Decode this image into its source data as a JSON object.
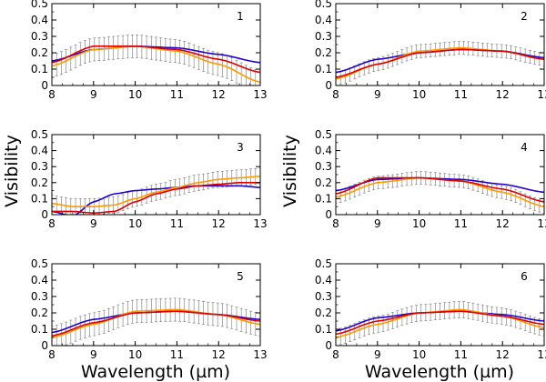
{
  "chart_data": [
    {
      "type": "line",
      "panel_label": "1",
      "x": [
        8,
        9,
        10,
        11,
        12,
        13
      ],
      "xlim": [
        8,
        13
      ],
      "ylim": [
        0,
        0.5
      ],
      "xticks": [
        8,
        9,
        10,
        11,
        12,
        13
      ],
      "yticks": [
        0,
        0.1,
        0.2,
        0.3,
        0.4,
        0.5
      ],
      "series": [
        {
          "name": "model-blue",
          "color": "#2200cc",
          "values": [
            0.15,
            0.22,
            0.24,
            0.23,
            0.19,
            0.14
          ]
        },
        {
          "name": "model-orange",
          "color": "#ff9900",
          "values": [
            0.12,
            0.22,
            0.24,
            0.21,
            0.13,
            0.02
          ]
        },
        {
          "name": "model-red",
          "color": "#dd0000",
          "values": [
            0.14,
            0.24,
            0.24,
            0.22,
            0.16,
            0.08
          ]
        }
      ],
      "errorbar": {
        "series": "model-orange",
        "halfwidth": 0.07
      }
    },
    {
      "type": "line",
      "panel_label": "2",
      "x": [
        8,
        9,
        10,
        11,
        12,
        13
      ],
      "xlim": [
        8,
        13
      ],
      "ylim": [
        0,
        0.5
      ],
      "xticks": [
        8,
        9,
        10,
        11,
        12,
        13
      ],
      "yticks": [
        0,
        0.1,
        0.2,
        0.3,
        0.4,
        0.5
      ],
      "series": [
        {
          "name": "model-blue",
          "color": "#2200cc",
          "values": [
            0.08,
            0.16,
            0.2,
            0.22,
            0.21,
            0.17
          ]
        },
        {
          "name": "model-orange",
          "color": "#ff9900",
          "values": [
            0.04,
            0.13,
            0.21,
            0.23,
            0.21,
            0.16
          ]
        },
        {
          "name": "model-red",
          "color": "#dd0000",
          "values": [
            0.05,
            0.13,
            0.2,
            0.22,
            0.21,
            0.16
          ]
        }
      ],
      "errorbar": {
        "series": "model-orange",
        "halfwidth": 0.04
      }
    },
    {
      "type": "line",
      "panel_label": "3",
      "x": [
        8,
        8.5,
        9,
        9.5,
        10,
        10.5,
        11,
        11.5,
        12,
        12.5,
        13
      ],
      "xlim": [
        8,
        13
      ],
      "ylim": [
        0,
        0.5
      ],
      "xticks": [
        8,
        9,
        10,
        11,
        12,
        13
      ],
      "yticks": [
        0,
        0.1,
        0.2,
        0.3,
        0.4,
        0.5
      ],
      "series": [
        {
          "name": "model-blue",
          "color": "#2200cc",
          "values": [
            0.02,
            -0.01,
            0.08,
            0.13,
            0.15,
            0.16,
            0.17,
            0.18,
            0.18,
            0.18,
            0.17
          ]
        },
        {
          "name": "model-orange",
          "color": "#ff9900",
          "values": [
            0.07,
            0.05,
            0.05,
            0.06,
            0.1,
            0.14,
            0.17,
            0.2,
            0.22,
            0.23,
            0.24
          ]
        },
        {
          "name": "model-red",
          "color": "#dd0000",
          "values": [
            0.02,
            0.02,
            0.01,
            0.02,
            0.08,
            0.13,
            0.16,
            0.18,
            0.19,
            0.2,
            0.2
          ]
        }
      ],
      "errorbar": {
        "series": "model-orange",
        "halfwidth": 0.05
      }
    },
    {
      "type": "line",
      "panel_label": "4",
      "x": [
        8,
        9,
        10,
        11,
        12,
        13
      ],
      "xlim": [
        8,
        13
      ],
      "ylim": [
        0,
        0.5
      ],
      "xticks": [
        8,
        9,
        10,
        11,
        12,
        13
      ],
      "yticks": [
        0,
        0.1,
        0.2,
        0.3,
        0.4,
        0.5
      ],
      "series": [
        {
          "name": "model-blue",
          "color": "#2200cc",
          "values": [
            0.15,
            0.22,
            0.23,
            0.22,
            0.19,
            0.14
          ]
        },
        {
          "name": "model-orange",
          "color": "#ff9900",
          "values": [
            0.11,
            0.2,
            0.23,
            0.21,
            0.14,
            0.05
          ]
        },
        {
          "name": "model-red",
          "color": "#dd0000",
          "values": [
            0.13,
            0.23,
            0.23,
            0.21,
            0.16,
            0.08
          ]
        }
      ],
      "errorbar": {
        "series": "model-orange",
        "halfwidth": 0.04
      }
    },
    {
      "type": "line",
      "panel_label": "5",
      "x": [
        8,
        9,
        10,
        11,
        12,
        13
      ],
      "xlim": [
        8,
        13
      ],
      "ylim": [
        0,
        0.5
      ],
      "xticks": [
        8,
        9,
        10,
        11,
        12,
        13
      ],
      "yticks": [
        0,
        0.1,
        0.2,
        0.3,
        0.4,
        0.5
      ],
      "series": [
        {
          "name": "model-blue",
          "color": "#2200cc",
          "values": [
            0.08,
            0.16,
            0.2,
            0.21,
            0.19,
            0.16
          ]
        },
        {
          "name": "model-orange",
          "color": "#ff9900",
          "values": [
            0.05,
            0.13,
            0.21,
            0.22,
            0.19,
            0.13
          ]
        },
        {
          "name": "model-red",
          "color": "#dd0000",
          "values": [
            0.06,
            0.14,
            0.2,
            0.21,
            0.19,
            0.15
          ]
        }
      ],
      "errorbar": {
        "series": "model-orange",
        "halfwidth": 0.07
      }
    },
    {
      "type": "line",
      "panel_label": "6",
      "x": [
        8,
        9,
        10,
        11,
        12,
        13
      ],
      "xlim": [
        8,
        13
      ],
      "ylim": [
        0,
        0.5
      ],
      "xticks": [
        8,
        9,
        10,
        11,
        12,
        13
      ],
      "yticks": [
        0,
        0.1,
        0.2,
        0.3,
        0.4,
        0.5
      ],
      "series": [
        {
          "name": "model-blue",
          "color": "#2200cc",
          "values": [
            0.09,
            0.17,
            0.2,
            0.21,
            0.19,
            0.15
          ]
        },
        {
          "name": "model-orange",
          "color": "#ff9900",
          "values": [
            0.05,
            0.13,
            0.2,
            0.22,
            0.18,
            0.11
          ]
        },
        {
          "name": "model-red",
          "color": "#dd0000",
          "values": [
            0.07,
            0.15,
            0.2,
            0.21,
            0.18,
            0.13
          ]
        }
      ],
      "errorbar": {
        "series": "model-orange",
        "halfwidth": 0.05
      }
    }
  ],
  "labels": {
    "ylabel_left": "Visibility",
    "ylabel_right": "Visibility",
    "xlabel_left": "Wavelength (µm)",
    "xlabel_right": "Wavelength (µm)"
  }
}
